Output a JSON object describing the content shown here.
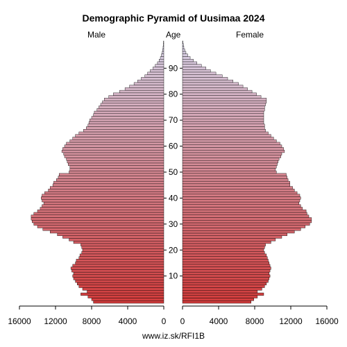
{
  "chart_data": {
    "type": "bar",
    "title": "Demographic Pyramid of Uusimaa 2024",
    "left_label": "Male",
    "center_label": "Age",
    "right_label": "Female",
    "footer": "www.iz.sk/RFI1B",
    "xlim": [
      0,
      16000
    ],
    "x_ticks": [
      0,
      4000,
      8000,
      12000,
      16000
    ],
    "x_tick_labels": [
      "0",
      "4000",
      "8000",
      "12000",
      "16000"
    ],
    "age_ticks": [
      10,
      20,
      30,
      40,
      50,
      60,
      70,
      80,
      90
    ],
    "colors": {
      "young": "#d23c3c",
      "old": "#d6d2e8",
      "excess": "#000000"
    },
    "categories": [
      "0",
      "1",
      "2",
      "3",
      "4",
      "5",
      "6",
      "7",
      "8",
      "9",
      "10",
      "11",
      "12",
      "13",
      "14",
      "15",
      "16",
      "17",
      "18",
      "19",
      "20",
      "21",
      "22",
      "23",
      "24",
      "25",
      "26",
      "27",
      "28",
      "29",
      "30",
      "31",
      "32",
      "33",
      "34",
      "35",
      "36",
      "37",
      "38",
      "39",
      "40",
      "41",
      "42",
      "43",
      "44",
      "45",
      "46",
      "47",
      "48",
      "49",
      "50",
      "51",
      "52",
      "53",
      "54",
      "55",
      "56",
      "57",
      "58",
      "59",
      "60",
      "61",
      "62",
      "63",
      "64",
      "65",
      "66",
      "67",
      "68",
      "69",
      "70",
      "71",
      "72",
      "73",
      "74",
      "75",
      "76",
      "77",
      "78",
      "79",
      "80",
      "81",
      "82",
      "83",
      "84",
      "85",
      "86",
      "87",
      "88",
      "89",
      "90",
      "91",
      "92",
      "93",
      "94",
      "95",
      "96",
      "97",
      "98",
      "99",
      "100"
    ],
    "series": [
      {
        "name": "Male",
        "values": [
          7800,
          8000,
          8400,
          9200,
          8500,
          9000,
          9400,
          9600,
          9800,
          10000,
          10100,
          10000,
          10200,
          10300,
          10100,
          9800,
          9700,
          9400,
          9300,
          9100,
          9000,
          9100,
          9200,
          10000,
          10500,
          11200,
          11800,
          12600,
          13400,
          14000,
          14400,
          14600,
          14700,
          14700,
          14400,
          14000,
          13700,
          13500,
          13300,
          13500,
          13600,
          13500,
          13200,
          12800,
          12600,
          12300,
          12200,
          11900,
          11700,
          11600,
          10500,
          10400,
          10400,
          10600,
          10700,
          10800,
          11000,
          11100,
          11300,
          11200,
          11000,
          10800,
          10400,
          10100,
          9800,
          9400,
          8900,
          8600,
          8400,
          8300,
          8200,
          8000,
          7800,
          7700,
          7400,
          7200,
          7000,
          6800,
          6600,
          6100,
          5600,
          4900,
          4300,
          3800,
          3300,
          2900,
          2500,
          2100,
          1800,
          1500,
          1200,
          950,
          700,
          520,
          380,
          270,
          180,
          120,
          80,
          50,
          30
        ],
        "excess": [
          0,
          0,
          0,
          0,
          0,
          0,
          0,
          0,
          0,
          0,
          0,
          0,
          0,
          0,
          0,
          0,
          0,
          0,
          0,
          0,
          0,
          0,
          0,
          0,
          0,
          0,
          0,
          0,
          0,
          0,
          0,
          0,
          0,
          0,
          0,
          0,
          0,
          0,
          0,
          0,
          0,
          0,
          0,
          0,
          0,
          0,
          0,
          0,
          0,
          0,
          0,
          0,
          0,
          0,
          0,
          0,
          0,
          0,
          0,
          0,
          0,
          0,
          0,
          0,
          0,
          0,
          0,
          0,
          0,
          0,
          0,
          0,
          0,
          0,
          0,
          0,
          0,
          0,
          0,
          0,
          0,
          0,
          0,
          0,
          0,
          0,
          0,
          0,
          0,
          0,
          0,
          0,
          0,
          0,
          0,
          0,
          0,
          0,
          0,
          0,
          0
        ]
      },
      {
        "name": "Female",
        "values": [
          7600,
          7900,
          8300,
          9000,
          8300,
          8800,
          9100,
          9300,
          9500,
          9600,
          9700,
          9600,
          9700,
          9800,
          9700,
          9600,
          9500,
          9400,
          9300,
          9100,
          9000,
          9100,
          9200,
          9800,
          10300,
          11000,
          11600,
          12400,
          13100,
          13600,
          14100,
          14300,
          14300,
          14000,
          13800,
          13700,
          13300,
          13100,
          12900,
          13000,
          13100,
          13000,
          12700,
          12400,
          12200,
          11900,
          11900,
          11700,
          11600,
          11500,
          10400,
          10300,
          10400,
          10500,
          10600,
          10700,
          10900,
          11000,
          11300,
          11200,
          11000,
          10800,
          10400,
          10100,
          9800,
          9500,
          9200,
          9100,
          9100,
          9000,
          9000,
          9000,
          9000,
          9000,
          9100,
          9100,
          9200,
          9300,
          9300,
          8700,
          8200,
          7700,
          7200,
          6700,
          6200,
          5600,
          5000,
          4400,
          3700,
          3100,
          2600,
          2100,
          1600,
          1200,
          850,
          580,
          380,
          240,
          150,
          90,
          50
        ],
        "excess": [
          0,
          0,
          0,
          0,
          0,
          0,
          0,
          0,
          0,
          0,
          0,
          0,
          0,
          0,
          0,
          0,
          0,
          0,
          0,
          0,
          0,
          0,
          0,
          0,
          0,
          0,
          0,
          0,
          0,
          0,
          0,
          0,
          0,
          0,
          0,
          0,
          0,
          0,
          0,
          0,
          0,
          0,
          0,
          0,
          0,
          0,
          0,
          0,
          0,
          0,
          0,
          0,
          0,
          0,
          0,
          0,
          0,
          0,
          0,
          0,
          0,
          0,
          0,
          0,
          0,
          0,
          0,
          0,
          0,
          0,
          0,
          0,
          0,
          0,
          0,
          0,
          0,
          0,
          0,
          0,
          0,
          0,
          0,
          0,
          0,
          0,
          0,
          0,
          0,
          0,
          0,
          0,
          0,
          0,
          0,
          0,
          0,
          0,
          0,
          0,
          0
        ]
      }
    ]
  }
}
